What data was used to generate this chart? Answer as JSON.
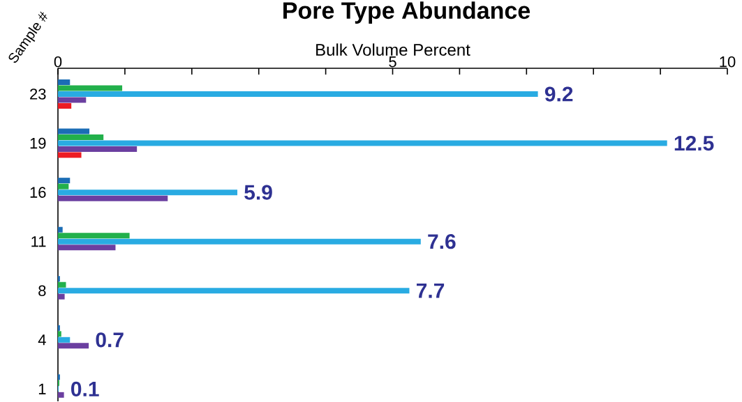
{
  "chart_data": {
    "type": "bar",
    "orientation": "horizontal",
    "title": "Pore Type Abundance",
    "xlabel": "Bulk Volume Percent",
    "ylabel": "Sample #",
    "categories": [
      "23",
      "19",
      "16",
      "11",
      "8",
      "4",
      "1"
    ],
    "series": [
      {
        "color": "#1b6db5",
        "values": [
          0.18,
          0.47,
          0.18,
          0.07,
          0.03,
          0.03,
          0.03
        ]
      },
      {
        "color": "#22b04b",
        "values": [
          0.96,
          0.68,
          0.16,
          1.07,
          0.12,
          0.05,
          0.02
        ]
      },
      {
        "color": "#29abe2",
        "values": [
          7.17,
          9.1,
          2.68,
          5.42,
          5.25,
          0.18,
          0.01
        ]
      },
      {
        "color": "#6b3fa0",
        "values": [
          0.42,
          1.18,
          1.64,
          0.86,
          0.1,
          0.46,
          0.09
        ]
      },
      {
        "color": "#ed1c24",
        "values": [
          0.2,
          0.35,
          null,
          null,
          null,
          null,
          null
        ]
      }
    ],
    "xlim": [
      0,
      10
    ],
    "xticks": [
      0,
      {
        "value": 1,
        "label": null
      },
      {
        "value": 2,
        "label": null
      },
      {
        "value": 3,
        "label": null
      },
      {
        "value": 4,
        "label": null
      },
      5,
      {
        "value": 6,
        "label": null
      },
      {
        "value": 7,
        "label": null
      },
      {
        "value": 8,
        "label": null
      },
      {
        "value": 9,
        "label": null
      },
      10
    ],
    "annotations": [
      "9.2",
      "12.5",
      "5.9",
      "7.6",
      "7.7",
      "0.7",
      "0.1"
    ]
  }
}
